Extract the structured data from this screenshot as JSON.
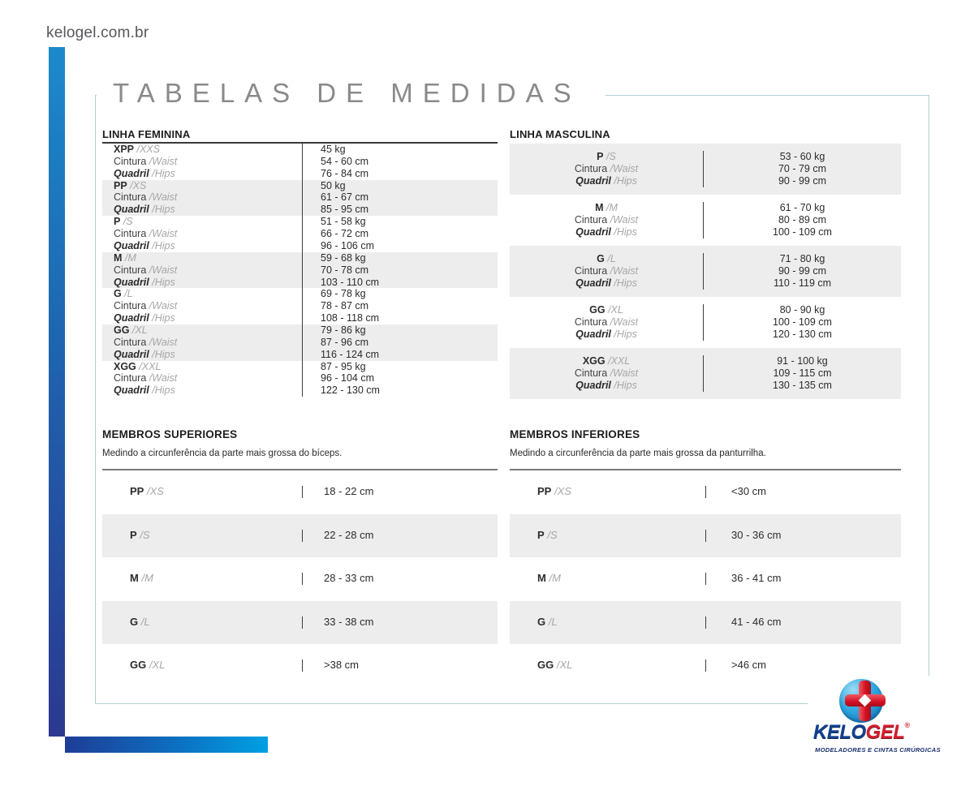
{
  "site_url": "kelogel.com.br",
  "page_title": "TABELAS DE MEDIDAS",
  "colors": {
    "accent_blue_light": "#1b8acb",
    "accent_blue_dark": "#2b3990",
    "accent_cyan": "#00a0e3",
    "row_gray": "#ededed",
    "frame_border": "#b3cfcf",
    "text_dark": "#2d2a2b",
    "text_gray": "#a8a6a7",
    "logo_red": "#d31f2f",
    "logo_navy": "#14418f"
  },
  "labels": {
    "waist": "Cintura",
    "waist_alt": "/Waist",
    "hips": "Quadril",
    "hips_alt": "/Hips"
  },
  "tables": {
    "feminina": {
      "heading": "LINHA FEMININA",
      "rows": [
        {
          "size": "XPP",
          "size_alt": "/XXS",
          "weight": "45 kg",
          "waist": "54 - 60 cm",
          "hips": "76 - 84 cm"
        },
        {
          "size": "PP",
          "size_alt": "/XS",
          "weight": "50 kg",
          "waist": "61 - 67 cm",
          "hips": "85 - 95 cm"
        },
        {
          "size": "P",
          "size_alt": "/S",
          "weight": "51 - 58 kg",
          "waist": "66 - 72 cm",
          "hips": "96 - 106 cm"
        },
        {
          "size": "M",
          "size_alt": "/M",
          "weight": "59 - 68 kg",
          "waist": "70 - 78 cm",
          "hips": "103 - 110 cm"
        },
        {
          "size": "G",
          "size_alt": "/L",
          "weight": "69 - 78 kg",
          "waist": "78 - 87 cm",
          "hips": "108 - 118 cm"
        },
        {
          "size": "GG",
          "size_alt": "/XL",
          "weight": "79 - 86 kg",
          "waist": "87 - 96 cm",
          "hips": "116 - 124 cm"
        },
        {
          "size": "XGG",
          "size_alt": "/XXL",
          "weight": "87 - 95 kg",
          "waist": "96 - 104 cm",
          "hips": "122 - 130 cm"
        }
      ],
      "gray_rows": [
        1,
        3,
        5
      ]
    },
    "masculina": {
      "heading": "LINHA MASCULINA",
      "rows": [
        {
          "size": "P",
          "size_alt": "/S",
          "weight": "53 - 60 kg",
          "waist": "70 - 79 cm",
          "hips": "90 - 99 cm"
        },
        {
          "size": "M",
          "size_alt": "/M",
          "weight": "61 - 70 kg",
          "waist": "80 - 89 cm",
          "hips": "100 - 109 cm"
        },
        {
          "size": "G",
          "size_alt": "/L",
          "weight": "71 - 80 kg",
          "waist": "90 - 99 cm",
          "hips": "110 - 119 cm"
        },
        {
          "size": "GG",
          "size_alt": "/XL",
          "weight": "80 - 90 kg",
          "waist": "100 - 109 cm",
          "hips": "120 - 130 cm"
        },
        {
          "size": "XGG",
          "size_alt": "/XXL",
          "weight": "91 - 100 kg",
          "waist": "109 - 115 cm",
          "hips": "130 - 135 cm"
        }
      ],
      "gray_rows": [
        0,
        2,
        4
      ]
    },
    "superiores": {
      "heading": "MEMBROS SUPERIORES",
      "subtitle": "Medindo a circunferência da parte mais grossa do bíceps.",
      "rows": [
        {
          "size": "PP",
          "size_alt": "/XS",
          "value": "18 - 22 cm"
        },
        {
          "size": "P",
          "size_alt": "/S",
          "value": "22 - 28 cm"
        },
        {
          "size": "M",
          "size_alt": "/M",
          "value": "28 - 33 cm"
        },
        {
          "size": "G",
          "size_alt": "/L",
          "value": "33 - 38 cm"
        },
        {
          "size": "GG",
          "size_alt": "/XL",
          "value": ">38 cm"
        }
      ],
      "gray_rows": [
        1,
        3
      ]
    },
    "inferiores": {
      "heading": "MEMBROS INFERIORES",
      "subtitle": "Medindo a circunferência da parte mais grossa da panturrilha.",
      "rows": [
        {
          "size": "PP",
          "size_alt": "/XS",
          "value": "<30 cm"
        },
        {
          "size": "P",
          "size_alt": "/S",
          "value": "30 - 36 cm"
        },
        {
          "size": "M",
          "size_alt": "/M",
          "value": "36 - 41 cm"
        },
        {
          "size": "G",
          "size_alt": "/L",
          "value": "41 - 46 cm"
        },
        {
          "size": "GG",
          "size_alt": "/XL",
          "value": ">46 cm"
        }
      ],
      "gray_rows": [
        1,
        3
      ]
    }
  },
  "logo": {
    "brand_primary": "KELO",
    "brand_secondary": "GEL",
    "registered": "®",
    "tagline": "MODELADORES E CINTAS CIRÚRGICAS"
  }
}
